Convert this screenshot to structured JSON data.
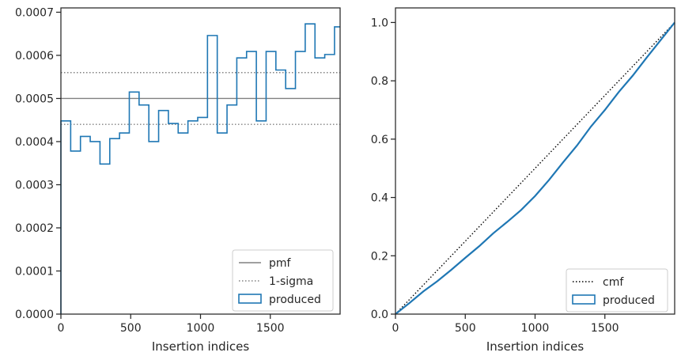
{
  "chart_data": [
    {
      "type": "line",
      "subtype": "step-histogram",
      "xlabel": "Insertion indices",
      "ylabel": "",
      "xlim": [
        0,
        2000
      ],
      "ylim": [
        0,
        0.00071
      ],
      "xticks": [
        0,
        500,
        1000,
        1500
      ],
      "xtick_labels": [
        "0",
        "500",
        "1000",
        "1500"
      ],
      "yticks": [
        0,
        0.0001,
        0.0002,
        0.0003,
        0.0004,
        0.0005,
        0.0006,
        0.0007
      ],
      "ytick_labels": [
        "0.0000",
        "0.0001",
        "0.0002",
        "0.0003",
        "0.0004",
        "0.0005",
        "0.0006",
        "0.0007"
      ],
      "grid": false,
      "legend_position": "lower-right",
      "legend": [
        {
          "label": "pmf",
          "style": "solid",
          "color": "#808080"
        },
        {
          "label": "1-sigma",
          "style": "dotted",
          "color": "#808080"
        },
        {
          "label": "produced",
          "style": "box",
          "color": "#1f77b4"
        }
      ],
      "reference_lines": {
        "pmf": 0.0005,
        "sigma_upper": 0.00056,
        "sigma_lower": 0.00044
      },
      "bin_edges": [
        0,
        70,
        140,
        210,
        280,
        350,
        420,
        490,
        560,
        630,
        700,
        770,
        840,
        910,
        980,
        1050,
        1120,
        1190,
        1260,
        1330,
        1400,
        1470,
        1540,
        1610,
        1680,
        1750,
        1820,
        1890,
        1960,
        2000
      ],
      "values": [
        0.000448,
        0.000378,
        0.000412,
        0.0004,
        0.000348,
        0.000407,
        0.00042,
        0.000515,
        0.000485,
        0.0004,
        0.000472,
        0.000442,
        0.00042,
        0.000448,
        0.000456,
        0.000646,
        0.00042,
        0.000485,
        0.000594,
        0.000609,
        0.000448,
        0.000609,
        0.000566,
        0.000523,
        0.000609,
        0.000673,
        0.000594,
        0.000602,
        0.000666
      ]
    },
    {
      "type": "line",
      "xlabel": "Insertion indices",
      "ylabel": "",
      "xlim": [
        0,
        2000
      ],
      "ylim": [
        0,
        1.05
      ],
      "xticks": [
        0,
        500,
        1000,
        1500
      ],
      "xtick_labels": [
        "0",
        "500",
        "1000",
        "1500"
      ],
      "yticks": [
        0.0,
        0.2,
        0.4,
        0.6,
        0.8,
        1.0
      ],
      "ytick_labels": [
        "0.0",
        "0.2",
        "0.4",
        "0.6",
        "0.8",
        "1.0"
      ],
      "grid": false,
      "legend_position": "lower-right",
      "legend": [
        {
          "label": "cmf",
          "style": "dotted",
          "color": "#000000"
        },
        {
          "label": "produced",
          "style": "box",
          "color": "#1f77b4"
        }
      ],
      "series": [
        {
          "name": "cmf",
          "x": [
            0,
            2000
          ],
          "y": [
            0,
            1.0
          ]
        },
        {
          "name": "produced",
          "x": [
            0,
            100,
            200,
            300,
            400,
            500,
            600,
            700,
            800,
            900,
            1000,
            1100,
            1200,
            1300,
            1400,
            1500,
            1600,
            1700,
            1800,
            1900,
            2000
          ],
          "y": [
            0,
            0.038,
            0.078,
            0.113,
            0.152,
            0.193,
            0.233,
            0.277,
            0.316,
            0.357,
            0.405,
            0.46,
            0.52,
            0.578,
            0.643,
            0.7,
            0.762,
            0.818,
            0.88,
            0.94,
            1.0
          ]
        }
      ]
    }
  ]
}
